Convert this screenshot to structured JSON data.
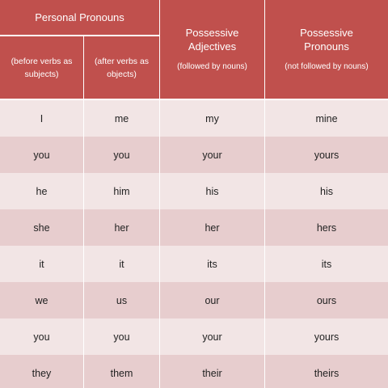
{
  "colors": {
    "header": "#c0504d",
    "row_odd": "#f2e5e5",
    "row_even": "#e7cdce"
  },
  "header": {
    "personal": "Personal Pronouns",
    "col1_sub": "(before verbs as subjects)",
    "col2_sub": "(after verbs as objects)",
    "adj_title": "Possessive Adjectives",
    "adj_sub": "(followed by nouns)",
    "pron_title": "Possessive Pronouns",
    "pron_sub": "(not  followed by nouns)"
  },
  "rows": [
    [
      "I",
      "me",
      "my",
      "mine"
    ],
    [
      "you",
      "you",
      "your",
      "yours"
    ],
    [
      "he",
      "him",
      "his",
      "his"
    ],
    [
      "she",
      "her",
      "her",
      "hers"
    ],
    [
      "it",
      "it",
      "its",
      "its"
    ],
    [
      "we",
      "us",
      "our",
      "ours"
    ],
    [
      "you",
      "you",
      "your",
      "yours"
    ],
    [
      "they",
      "them",
      "their",
      "theirs"
    ]
  ]
}
